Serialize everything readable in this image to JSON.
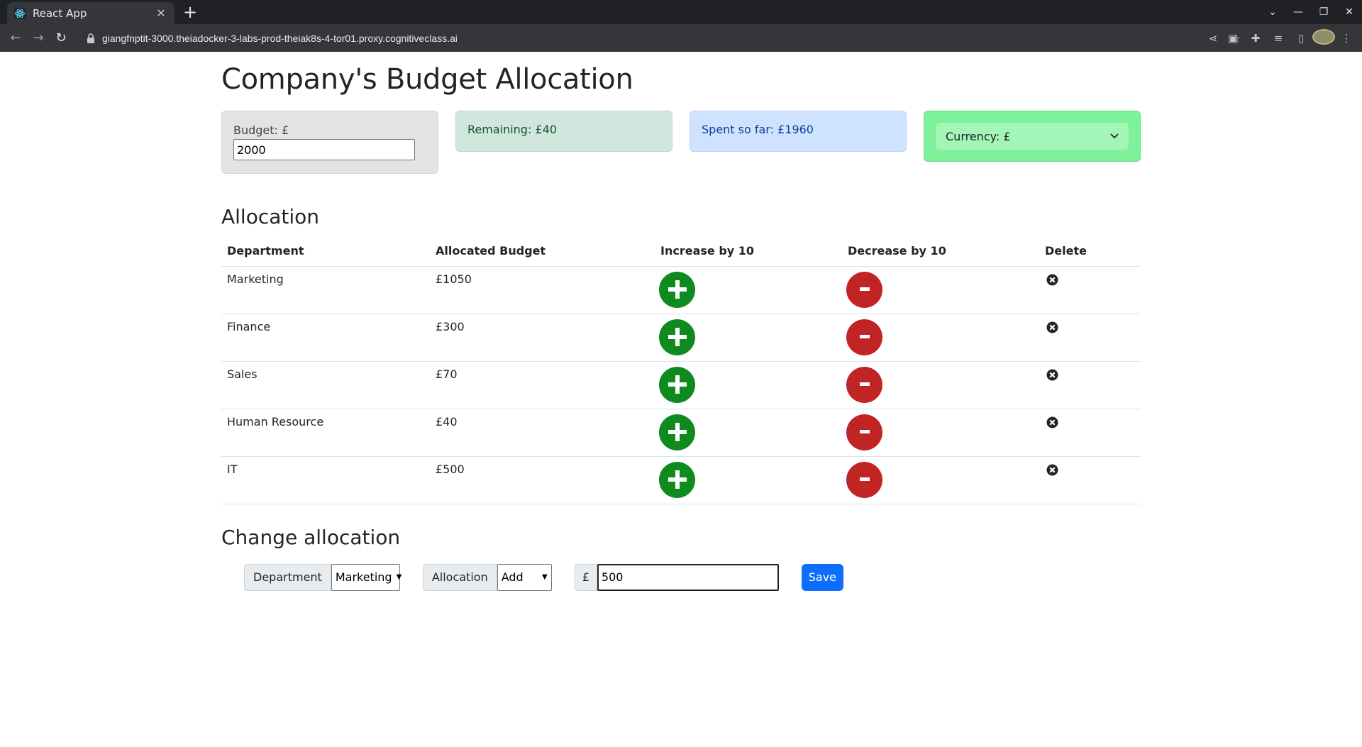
{
  "browser": {
    "tab_title": "React App",
    "tab_close": "✕",
    "new_tab": "+",
    "url": "giangfnptit-3000.theiadocker-3-labs-prod-theiak8s-4-tor01.proxy.cognitiveclass.ai",
    "controls": {
      "minimize": "—",
      "maximize": "❐",
      "close": "✕"
    }
  },
  "page": {
    "title": "Company's Budget Allocation",
    "budget": {
      "label": "Budget: £",
      "value": "2000"
    },
    "remaining": "Remaining: £40",
    "spent": "Spent so far: £1960",
    "currency": "Currency: £",
    "colors": {
      "increase": "#0e8a1e",
      "decrease": "#c02424",
      "save": "#0d6efd"
    }
  },
  "allocation": {
    "heading": "Allocation",
    "columns": [
      "Department",
      "Allocated Budget",
      "Increase by 10",
      "Decrease by 10",
      "Delete"
    ],
    "rows": [
      {
        "department": "Marketing",
        "budget": "£1050"
      },
      {
        "department": "Finance",
        "budget": "£300"
      },
      {
        "department": "Sales",
        "budget": "£70"
      },
      {
        "department": "Human Resource",
        "budget": "£40"
      },
      {
        "department": "IT",
        "budget": "£500"
      }
    ]
  },
  "change": {
    "heading": "Change allocation",
    "department_label": "Department",
    "department_value": "Marketing",
    "allocation_label": "Allocation",
    "allocation_value": "Add",
    "currency_symbol": "£",
    "amount": "500",
    "save_label": "Save"
  }
}
